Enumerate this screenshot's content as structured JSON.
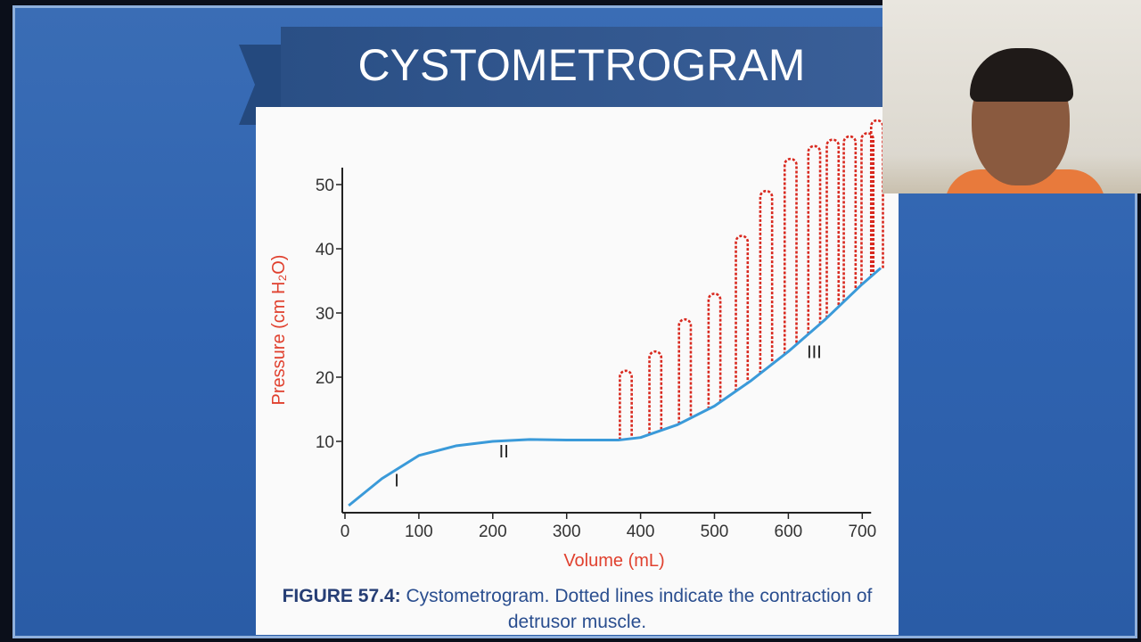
{
  "slide": {
    "title": "CYSTOMETROGRAM",
    "caption_label": "FIGURE 57.4:",
    "caption_text": " Cystometrogram. Dotted lines indicate the contraction of detrusor muscle."
  },
  "colors": {
    "curve": "#3a9ad9",
    "contraction": "#d8281e",
    "axis_label": "#e0402e",
    "slide_bg": "#2f63b0",
    "banner": "#2c4f85"
  },
  "webcam": {
    "icon": "presenter-webcam-feed"
  },
  "chart_data": {
    "type": "line",
    "title": "",
    "xlabel": "Volume (mL)",
    "ylabel": "Pressure (cm H₂O)",
    "xlim": [
      0,
      725
    ],
    "ylim": [
      0,
      53
    ],
    "xticks": [
      "0",
      "100",
      "200",
      "300",
      "400",
      "500",
      "600",
      "700"
    ],
    "yticks": [
      "10",
      "20",
      "30",
      "40",
      "50"
    ],
    "grid": false,
    "legend": "none",
    "phase_labels": [
      {
        "text": "I",
        "x": 70,
        "y": 3
      },
      {
        "text": "II",
        "x": 215,
        "y": 7.5
      },
      {
        "text": "III",
        "x": 635,
        "y": 23
      }
    ],
    "series": [
      {
        "style": "solid",
        "x": [
          5,
          50,
          100,
          150,
          200,
          250,
          300,
          370,
          400,
          450,
          500,
          550,
          600,
          650,
          700,
          725
        ],
        "y": [
          0,
          4.2,
          7.8,
          9.3,
          10,
          10.3,
          10.2,
          10.2,
          10.6,
          12.6,
          15.5,
          19.5,
          24,
          29,
          34.5,
          37
        ]
      },
      {
        "style": "dotted",
        "contractions_x": [
          380,
          420,
          460,
          500,
          537,
          570,
          603,
          635,
          660,
          683,
          707,
          720
        ],
        "contractions_peak": [
          21,
          24,
          29,
          33,
          42,
          49,
          54,
          56,
          57,
          57.5,
          58,
          60
        ]
      }
    ]
  }
}
